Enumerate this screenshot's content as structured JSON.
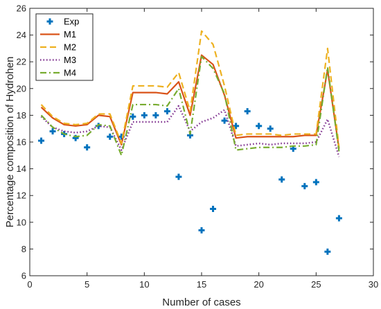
{
  "chart_data": {
    "type": "line",
    "xlabel": "Number of cases",
    "ylabel": "Percentage composition of Hydrohen",
    "xlim": [
      0,
      30
    ],
    "ylim": [
      6,
      26
    ],
    "xticks": [
      0,
      5,
      10,
      15,
      20,
      25,
      30
    ],
    "yticks": [
      6,
      8,
      10,
      12,
      14,
      16,
      18,
      20,
      22,
      24,
      26
    ],
    "grid": false,
    "legend_position": "top-left",
    "series": [
      {
        "name": "Exp",
        "style": "marker-plus",
        "color": "#0072BD",
        "x": [
          1,
          2,
          3,
          4,
          5,
          6,
          7,
          8,
          9,
          10,
          11,
          12,
          13,
          14,
          15,
          16,
          17,
          18,
          19,
          20,
          21,
          22,
          23,
          24,
          25,
          26,
          27
        ],
        "y": [
          16.1,
          16.8,
          16.6,
          16.3,
          15.6,
          17.2,
          16.4,
          16.4,
          17.9,
          18.0,
          18.0,
          18.3,
          13.4,
          16.5,
          9.4,
          11.0,
          17.6,
          17.2,
          18.3,
          17.2,
          17.0,
          13.2,
          15.5,
          12.7,
          13.0,
          7.8,
          10.3
        ]
      },
      {
        "name": "M1",
        "style": "solid",
        "color": "#D95319",
        "x": [
          1,
          2,
          3,
          4,
          5,
          6,
          7,
          8,
          9,
          10,
          11,
          12,
          13,
          14,
          15,
          16,
          17,
          18,
          19,
          20,
          21,
          22,
          23,
          24,
          25,
          26,
          27
        ],
        "y": [
          18.6,
          17.8,
          17.3,
          17.2,
          17.3,
          18.0,
          17.9,
          15.8,
          19.7,
          19.7,
          19.7,
          19.6,
          20.5,
          18.0,
          22.5,
          21.8,
          19.5,
          16.3,
          16.4,
          16.4,
          16.4,
          16.4,
          16.4,
          16.5,
          16.5,
          21.4,
          15.5
        ]
      },
      {
        "name": "M2",
        "style": "dashed",
        "color": "#EDB120",
        "x": [
          1,
          2,
          3,
          4,
          5,
          6,
          7,
          8,
          9,
          10,
          11,
          12,
          13,
          14,
          15,
          16,
          17,
          18,
          19,
          20,
          21,
          22,
          23,
          24,
          25,
          26,
          27
        ],
        "y": [
          18.8,
          17.9,
          17.4,
          17.3,
          17.4,
          18.1,
          18.1,
          15.9,
          20.2,
          20.2,
          20.2,
          20.1,
          21.2,
          18.3,
          24.3,
          23.3,
          20.2,
          16.5,
          16.6,
          16.6,
          16.6,
          16.5,
          16.6,
          16.6,
          16.6,
          23.0,
          15.6
        ]
      },
      {
        "name": "M3",
        "style": "dotted",
        "color": "#7E2F8E",
        "x": [
          1,
          2,
          3,
          4,
          5,
          6,
          7,
          8,
          9,
          10,
          11,
          12,
          13,
          14,
          15,
          16,
          17,
          18,
          19,
          20,
          21,
          22,
          23,
          24,
          25,
          26,
          27
        ],
        "y": [
          17.9,
          17.1,
          16.8,
          16.7,
          16.8,
          17.2,
          17.1,
          15.4,
          17.5,
          17.5,
          17.5,
          17.5,
          18.7,
          16.8,
          17.5,
          17.8,
          18.4,
          15.7,
          15.8,
          15.9,
          15.8,
          15.9,
          15.9,
          15.9,
          16.0,
          17.7,
          14.9
        ]
      },
      {
        "name": "M4",
        "style": "dash-dot",
        "color": "#77AC30",
        "x": [
          1,
          2,
          3,
          4,
          5,
          6,
          7,
          8,
          9,
          10,
          11,
          12,
          13,
          14,
          15,
          16,
          17,
          18,
          19,
          20,
          21,
          22,
          23,
          24,
          25,
          26,
          27
        ],
        "y": [
          18.0,
          17.1,
          16.6,
          16.4,
          16.5,
          17.3,
          17.2,
          15.0,
          18.8,
          18.8,
          18.8,
          18.7,
          20.0,
          16.6,
          22.4,
          21.5,
          19.6,
          15.4,
          15.5,
          15.6,
          15.6,
          15.6,
          15.7,
          15.7,
          15.8,
          21.6,
          15.3
        ]
      }
    ]
  }
}
